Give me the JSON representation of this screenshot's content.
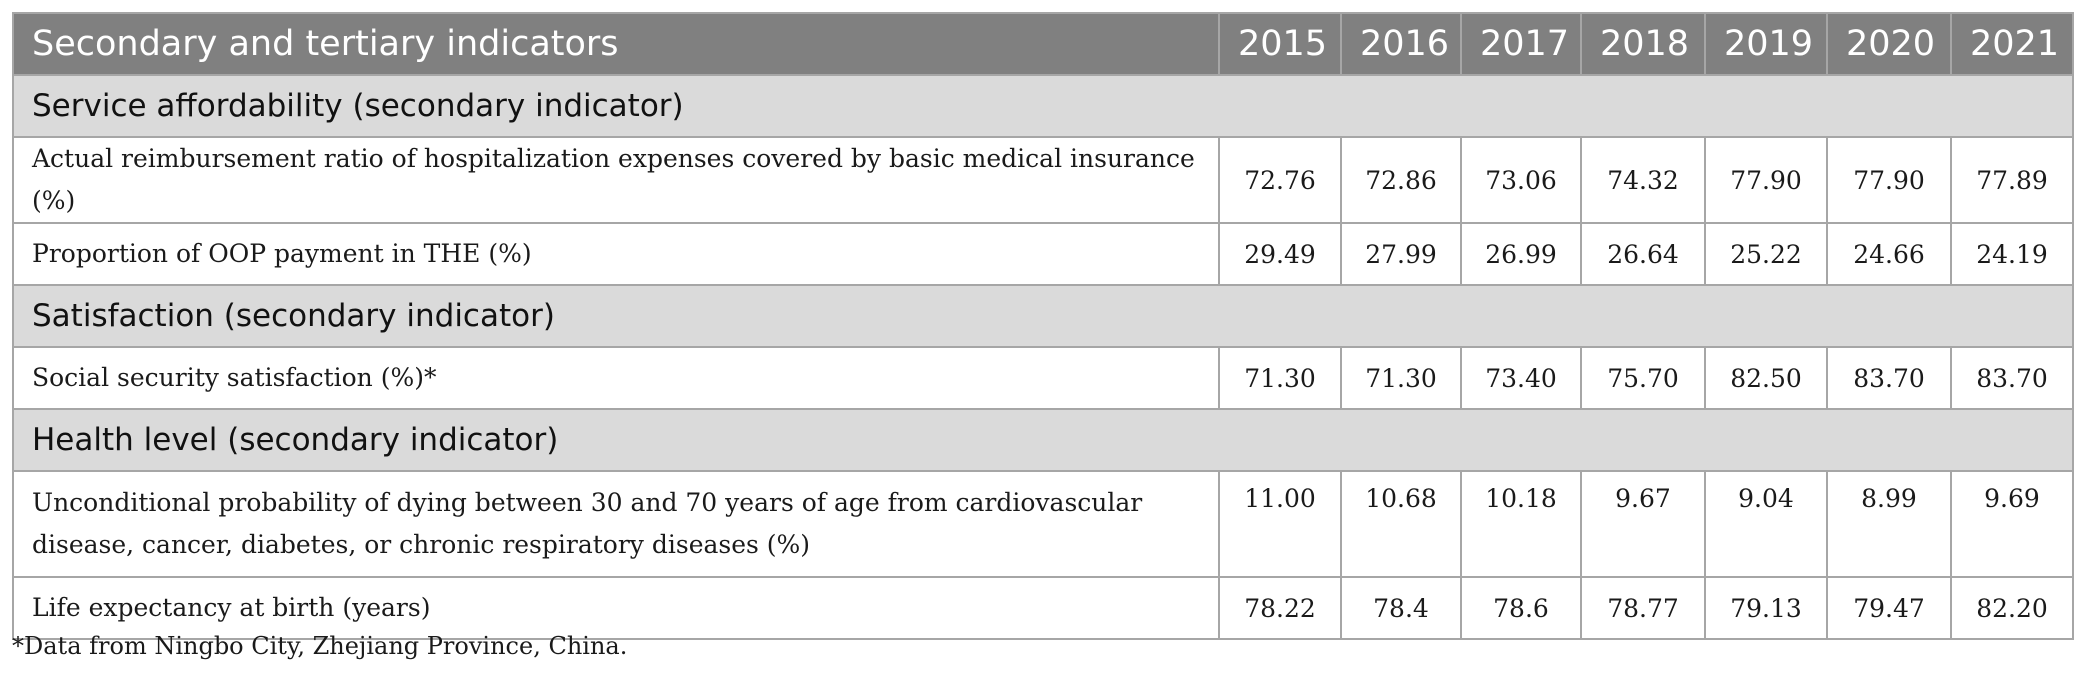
{
  "table": {
    "header": {
      "indicator_label": "Secondary and tertiary indicators",
      "years": [
        "2015",
        "2016",
        "2017",
        "2018",
        "2019",
        "2020",
        "2021"
      ]
    },
    "sections": [
      {
        "title": "Service affordability (secondary indicator)",
        "rows": [
          {
            "label": "Actual reimbursement ratio of hospitalization expenses covered by basic medical insurance (%)",
            "values": [
              "72.76",
              "72.86",
              "73.06",
              "74.32",
              "77.90",
              "77.90",
              "77.89"
            ]
          },
          {
            "label": "Proportion of OOP payment in THE (%)",
            "values": [
              "29.49",
              "27.99",
              "26.99",
              "26.64",
              "25.22",
              "24.66",
              "24.19"
            ]
          }
        ]
      },
      {
        "title": "Satisfaction (secondary indicator)",
        "rows": [
          {
            "label": "Social security satisfaction (%)*",
            "values": [
              "71.30",
              "71.30",
              "73.40",
              "75.70",
              "82.50",
              "83.70",
              "83.70"
            ]
          }
        ]
      },
      {
        "title": "Health level (secondary indicator)",
        "rows": [
          {
            "label": "Unconditional probability of dying between 30 and 70 years of age from cardiovascular disease, cancer, diabetes, or chronic respiratory diseases (%)",
            "values": [
              "11.00",
              "10.68",
              "10.18",
              "9.67",
              "9.04",
              "8.99",
              "9.69"
            ]
          },
          {
            "label": "Life expectancy at birth (years)",
            "values": [
              "78.22",
              "78.4",
              "78.6",
              "78.77",
              "79.13",
              "79.47",
              "82.20"
            ]
          }
        ]
      }
    ]
  },
  "footnote": "*Data from Ningbo City, Zhejiang Province, China.",
  "colors": {
    "header_bg": "#808080",
    "section_bg": "#dadada",
    "border": "#a6a6a6"
  }
}
